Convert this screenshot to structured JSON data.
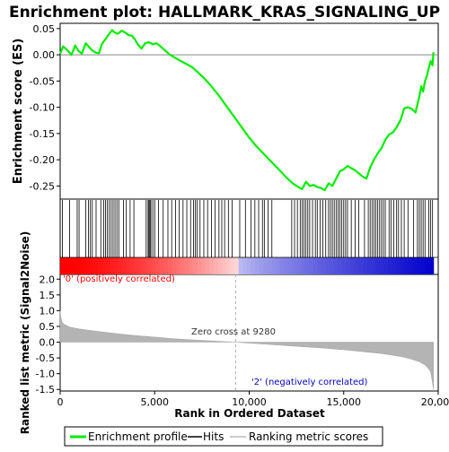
{
  "chart_data": {
    "type": "line",
    "title": "Enrichment plot: HALLMARK_KRAS_SIGNALING_UP",
    "top_panel": {
      "ylabel": "Enrichment score (ES)",
      "ylim": [
        -0.275,
        0.06
      ],
      "yticks": [
        0.05,
        0.0,
        -0.05,
        -0.1,
        -0.15,
        -0.2,
        -0.25
      ],
      "ytick_labels": [
        "0.05",
        "0.00",
        "-0.05",
        "-0.10",
        "-0.15",
        "-0.20",
        "-0.25"
      ],
      "series": [
        {
          "name": "Enrichment profile",
          "color": "#00ee00",
          "x": [
            0,
            150,
            350,
            600,
            800,
            950,
            1150,
            1350,
            1550,
            1700,
            1900,
            2050,
            2200,
            2400,
            2600,
            2750,
            2900,
            3050,
            3250,
            3450,
            3600,
            3800,
            3950,
            4100,
            4300,
            4500,
            4700,
            4900,
            5100,
            5300,
            5500,
            5800,
            6200,
            6600,
            7000,
            7300,
            7600,
            8000,
            8400,
            8800,
            9200,
            9600,
            10000,
            10400,
            10800,
            11200,
            11600,
            12000,
            12300,
            12600,
            12800,
            13000,
            13200,
            13400,
            13600,
            13800,
            14000,
            14200,
            14400,
            14600,
            14800,
            15000,
            15200,
            15400,
            15600,
            15800,
            16000,
            16200,
            16400,
            16600,
            16800,
            17000,
            17200,
            17400,
            17600,
            17800,
            18000,
            18200,
            18400,
            18600,
            18800,
            19000,
            19100,
            19200,
            19300,
            19400,
            19500,
            19600,
            19700,
            19750
          ],
          "values": [
            0.002,
            0.016,
            0.01,
            0.0,
            0.018,
            0.008,
            0.002,
            0.022,
            0.014,
            0.008,
            0.004,
            0.003,
            0.02,
            0.03,
            0.04,
            0.047,
            0.042,
            0.04,
            0.046,
            0.042,
            0.038,
            0.036,
            0.03,
            0.02,
            0.012,
            0.022,
            0.024,
            0.02,
            0.022,
            0.016,
            0.01,
            0.0,
            -0.008,
            -0.016,
            -0.024,
            -0.034,
            -0.044,
            -0.06,
            -0.078,
            -0.098,
            -0.118,
            -0.138,
            -0.158,
            -0.175,
            -0.19,
            -0.205,
            -0.22,
            -0.235,
            -0.245,
            -0.252,
            -0.256,
            -0.242,
            -0.25,
            -0.248,
            -0.252,
            -0.254,
            -0.258,
            -0.245,
            -0.25,
            -0.236,
            -0.222,
            -0.218,
            -0.212,
            -0.216,
            -0.22,
            -0.226,
            -0.232,
            -0.236,
            -0.215,
            -0.2,
            -0.188,
            -0.178,
            -0.162,
            -0.152,
            -0.148,
            -0.138,
            -0.125,
            -0.102,
            -0.1,
            -0.103,
            -0.11,
            -0.08,
            -0.06,
            -0.07,
            -0.05,
            -0.04,
            -0.025,
            -0.012,
            -0.02,
            0.005
          ]
        }
      ]
    },
    "hits_panel": {
      "series_name": "Hits",
      "hit_positions": [
        120,
        500,
        900,
        1000,
        1350,
        1500,
        1600,
        1700,
        1900,
        2150,
        2300,
        2400,
        2500,
        2600,
        2700,
        2800,
        2900,
        3000,
        3100,
        3350,
        3500,
        3700,
        3900,
        4550,
        4650,
        4700,
        4750,
        4800,
        4900,
        5000,
        5200,
        5450,
        5700,
        5900,
        6100,
        6300,
        6500,
        6700,
        6900,
        7050,
        7150,
        7250,
        7400,
        7600,
        7800,
        8000,
        8200,
        8400,
        8550,
        8700,
        8900,
        9100,
        9500,
        9800,
        10100,
        10300,
        10500,
        10700,
        10800,
        11000,
        11200,
        12250,
        12400,
        12550,
        12700,
        12800,
        12900,
        13000,
        13100,
        13200,
        13350,
        13500,
        13600,
        13750,
        13900,
        14050,
        14200,
        14300,
        14400,
        14500,
        14600,
        14700,
        14800,
        14900,
        15000,
        15100,
        15200,
        15400,
        15600,
        15800,
        16100,
        16300,
        16400,
        16500,
        16600,
        16700,
        16800,
        16900,
        17000,
        17100,
        17200,
        17400,
        17500,
        17650,
        17800,
        17900,
        18050,
        18200,
        18400,
        18700,
        18900,
        19000,
        19100,
        19200,
        19300,
        19500,
        19600,
        19700
      ]
    },
    "metric_panel": {
      "ylabel": "Ranked list metric (Signal2Noise)",
      "series_name": "Ranking metric scores",
      "ylim": [
        -1.55,
        2.15
      ],
      "yticks": [
        2.0,
        1.5,
        1.0,
        0.5,
        0.0,
        -0.5,
        -1.0,
        -1.5
      ],
      "ytick_labels": [
        "2.0",
        "1.5",
        "1.0",
        "0.5",
        "0.0",
        "-0.5",
        "-1.0",
        "-1.5"
      ],
      "x": [
        0,
        20,
        60,
        120,
        250,
        500,
        1000,
        2000,
        3000,
        4000,
        5000,
        6000,
        7000,
        8000,
        9000,
        9280,
        10000,
        11000,
        12000,
        13000,
        14000,
        15000,
        16000,
        17000,
        18000,
        18500,
        19000,
        19300,
        19500,
        19600,
        19650,
        19700,
        19750
      ],
      "values": [
        1.0,
        0.85,
        0.72,
        0.62,
        0.55,
        0.48,
        0.42,
        0.34,
        0.27,
        0.21,
        0.16,
        0.11,
        0.07,
        0.04,
        0.01,
        0.0,
        -0.03,
        -0.07,
        -0.11,
        -0.15,
        -0.19,
        -0.24,
        -0.3,
        -0.36,
        -0.45,
        -0.52,
        -0.62,
        -0.72,
        -0.85,
        -0.95,
        -1.1,
        -1.3,
        -1.5
      ],
      "zero_cross_label": "Zero cross at 9280",
      "zero_cross": 9280,
      "pos_label": "'0' (positively correlated)",
      "neg_label": "'2' (negatively correlated)",
      "pos_color": "#ff0000",
      "neg_color": "#0000cc"
    },
    "xaxis": {
      "xlabel": "Rank in Ordered Dataset",
      "xlim": [
        0,
        20000
      ],
      "xticks": [
        0,
        5000,
        10000,
        15000,
        20000
      ],
      "xtick_labels": [
        "0",
        "5,000",
        "10,000",
        "15,000",
        "20,000"
      ]
    },
    "legend": {
      "placement": "bottom",
      "entries": [
        {
          "label": "Enrichment profile",
          "color": "#00ee00"
        },
        {
          "label": "Hits",
          "color": "#000000"
        },
        {
          "label": "Ranking metric scores",
          "color": "#bbbbbb"
        }
      ]
    }
  }
}
